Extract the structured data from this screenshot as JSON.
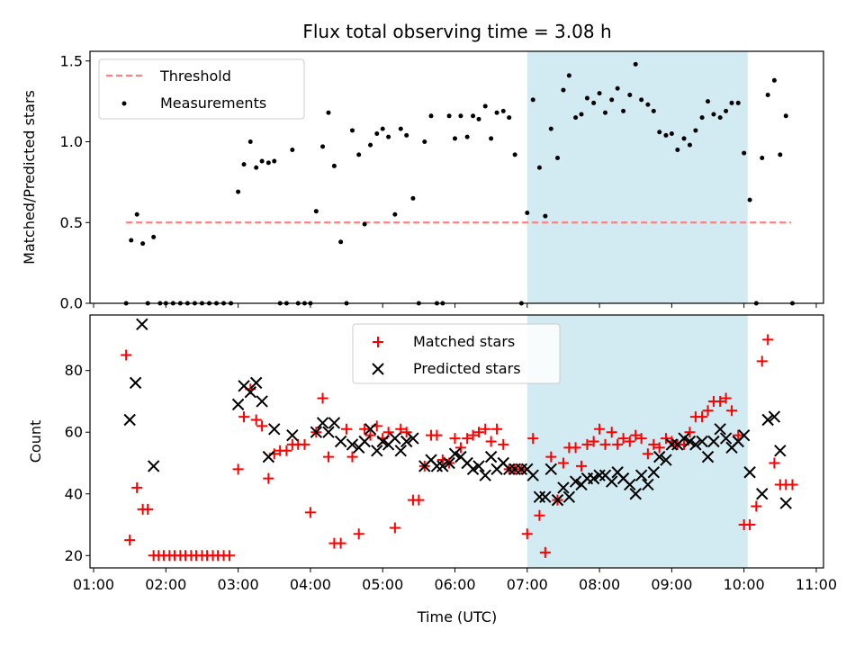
{
  "figure_title": "Flux total observing time = 3.08 h",
  "colors": {
    "threshold": "#ff7f7f",
    "measurement": "#000000",
    "matched": "#ff0000",
    "predicted": "#000000",
    "shade": "#add8e6"
  },
  "chart_data": [
    {
      "type": "scatter",
      "panel": "top",
      "ylabel": "Matched/Predicted stars",
      "xlim": [
        0.95,
        11.1
      ],
      "ylim": [
        0,
        1.56
      ],
      "yticks": [
        0,
        0.5,
        1,
        1.5
      ],
      "ytick_labels": [
        "0.0",
        "0.5",
        "1.0",
        "1.5"
      ],
      "grid": false,
      "legend_position": "upper-left",
      "shaded_region": [
        7.0,
        10.05
      ],
      "series": [
        {
          "name": "Threshold",
          "kind": "dashed-line",
          "x": [
            1.45,
            10.65
          ],
          "y": [
            0.5,
            0.5
          ]
        },
        {
          "name": "Measurements",
          "kind": "points",
          "x": [
            1.45,
            1.52,
            1.6,
            1.68,
            1.75,
            1.83,
            1.92,
            2.0,
            2.1,
            2.2,
            2.3,
            2.4,
            2.5,
            2.6,
            2.7,
            2.8,
            2.9,
            3.0,
            3.08,
            3.17,
            3.25,
            3.33,
            3.42,
            3.5,
            3.58,
            3.67,
            3.75,
            3.83,
            3.92,
            4.0,
            4.08,
            4.17,
            4.25,
            4.33,
            4.42,
            4.5,
            4.58,
            4.67,
            4.75,
            4.83,
            4.92,
            5.0,
            5.08,
            5.17,
            5.25,
            5.33,
            5.42,
            5.5,
            5.58,
            5.67,
            5.75,
            5.83,
            5.92,
            6.0,
            6.08,
            6.17,
            6.25,
            6.33,
            6.42,
            6.5,
            6.58,
            6.67,
            6.75,
            6.83,
            6.92,
            7.0,
            7.08,
            7.17,
            7.25,
            7.33,
            7.42,
            7.5,
            7.58,
            7.67,
            7.75,
            7.83,
            7.92,
            8.0,
            8.08,
            8.17,
            8.25,
            8.33,
            8.42,
            8.5,
            8.58,
            8.67,
            8.75,
            8.83,
            8.92,
            9.0,
            9.08,
            9.17,
            9.25,
            9.33,
            9.42,
            9.5,
            9.58,
            9.67,
            9.75,
            9.83,
            9.92,
            10.0,
            10.08,
            10.17,
            10.25,
            10.33,
            10.42,
            10.5,
            10.58,
            10.67
          ],
          "y": [
            0.0,
            0.39,
            0.55,
            0.37,
            0.0,
            0.41,
            0.0,
            0.0,
            0.0,
            0.0,
            0.0,
            0.0,
            0.0,
            0.0,
            0.0,
            0.0,
            0.0,
            0.69,
            0.86,
            1.0,
            0.84,
            0.88,
            0.87,
            0.88,
            0.0,
            0.0,
            0.95,
            0.0,
            0.0,
            0.0,
            0.57,
            0.97,
            1.18,
            0.85,
            0.38,
            0.0,
            1.07,
            0.92,
            0.49,
            0.98,
            1.05,
            1.08,
            1.03,
            0.55,
            1.08,
            1.04,
            0.65,
            0.0,
            1.0,
            1.16,
            0.0,
            0.0,
            1.16,
            1.02,
            1.16,
            1.03,
            1.16,
            1.14,
            1.22,
            1.02,
            1.18,
            1.19,
            1.15,
            0.92,
            0.0,
            0.56,
            1.26,
            0.84,
            0.54,
            1.08,
            0.9,
            1.32,
            1.41,
            1.15,
            1.17,
            1.27,
            1.24,
            1.3,
            1.18,
            1.26,
            1.33,
            1.19,
            1.29,
            1.48,
            1.26,
            1.23,
            1.19,
            1.06,
            1.04,
            1.05,
            0.95,
            1.02,
            0.98,
            1.07,
            1.15,
            1.25,
            1.17,
            1.15,
            1.19,
            1.24,
            1.24,
            0.93,
            0.64,
            0.0,
            0.9,
            1.29,
            1.38,
            0.92,
            1.16,
            0.0
          ]
        }
      ]
    },
    {
      "type": "scatter",
      "panel": "bottom",
      "xlabel": "Time (UTC)",
      "ylabel": "Count",
      "xlim": [
        0.95,
        11.1
      ],
      "ylim": [
        16,
        98
      ],
      "xticks": [
        1,
        2,
        3,
        4,
        5,
        6,
        7,
        8,
        9,
        10,
        11
      ],
      "xtick_labels": [
        "01:00",
        "02:00",
        "03:00",
        "04:00",
        "05:00",
        "06:00",
        "07:00",
        "08:00",
        "09:00",
        "10:00",
        "11:00"
      ],
      "yticks": [
        20,
        40,
        60,
        80
      ],
      "ytick_labels": [
        "20",
        "40",
        "60",
        "80"
      ],
      "grid": false,
      "legend_position": "upper-center",
      "shaded_region": [
        7.0,
        10.05
      ],
      "series": [
        {
          "name": "Matched stars",
          "marker": "plus",
          "x": [
            1.45,
            1.5,
            1.6,
            1.68,
            1.75,
            1.83,
            1.9,
            1.97,
            2.05,
            2.12,
            2.2,
            2.27,
            2.35,
            2.42,
            2.5,
            2.57,
            2.65,
            2.72,
            2.8,
            2.88,
            3.0,
            3.08,
            3.17,
            3.25,
            3.33,
            3.42,
            3.5,
            3.58,
            3.67,
            3.75,
            3.83,
            3.92,
            4.0,
            4.08,
            4.17,
            4.25,
            4.33,
            4.42,
            4.5,
            4.58,
            4.67,
            4.75,
            4.83,
            4.92,
            5.0,
            5.08,
            5.17,
            5.25,
            5.33,
            5.42,
            5.5,
            5.58,
            5.67,
            5.75,
            5.83,
            5.92,
            6.0,
            6.08,
            6.17,
            6.25,
            6.33,
            6.42,
            6.5,
            6.58,
            6.67,
            6.75,
            6.83,
            6.92,
            7.0,
            7.08,
            7.17,
            7.25,
            7.33,
            7.42,
            7.5,
            7.58,
            7.67,
            7.75,
            7.83,
            7.92,
            8.0,
            8.08,
            8.17,
            8.25,
            8.33,
            8.42,
            8.5,
            8.58,
            8.67,
            8.75,
            8.83,
            8.92,
            9.0,
            9.08,
            9.17,
            9.25,
            9.33,
            9.42,
            9.5,
            9.58,
            9.67,
            9.75,
            9.83,
            9.92,
            10.0,
            10.08,
            10.17,
            10.25,
            10.33,
            10.42,
            10.5,
            10.58,
            10.67
          ],
          "y": [
            85,
            25,
            42,
            35,
            35,
            20,
            20,
            20,
            20,
            20,
            20,
            20,
            20,
            20,
            20,
            20,
            20,
            20,
            20,
            20,
            48,
            65,
            74,
            64,
            62,
            45,
            53,
            54,
            54,
            56,
            56,
            56,
            34,
            60,
            71,
            52,
            24,
            24,
            61,
            52,
            27,
            61,
            59,
            62,
            58,
            60,
            29,
            61,
            60,
            38,
            38,
            49,
            59,
            59,
            51,
            50,
            58,
            55,
            58,
            59,
            60,
            61,
            57,
            61,
            56,
            48,
            48,
            48,
            27,
            58,
            33,
            21,
            52,
            38,
            50,
            55,
            55,
            49,
            56,
            57,
            61,
            56,
            60,
            56,
            58,
            57,
            59,
            58,
            53,
            56,
            55,
            58,
            57,
            56,
            56,
            60,
            65,
            65,
            67,
            70,
            70,
            71,
            67,
            59,
            30,
            30,
            36,
            83,
            90,
            50,
            43,
            43,
            43
          ]
        },
        {
          "name": "Predicted stars",
          "marker": "x",
          "x": [
            1.5,
            1.58,
            1.67,
            1.83,
            3.0,
            3.08,
            3.17,
            3.25,
            3.33,
            3.42,
            3.5,
            3.75,
            4.08,
            4.17,
            4.25,
            4.33,
            4.42,
            4.58,
            4.67,
            4.75,
            4.83,
            4.92,
            5.0,
            5.08,
            5.17,
            5.25,
            5.33,
            5.42,
            5.58,
            5.67,
            5.75,
            5.83,
            5.92,
            6.0,
            6.08,
            6.17,
            6.25,
            6.33,
            6.42,
            6.5,
            6.58,
            6.67,
            6.75,
            6.83,
            6.92,
            7.0,
            7.08,
            7.17,
            7.25,
            7.33,
            7.42,
            7.5,
            7.58,
            7.67,
            7.75,
            7.83,
            7.92,
            8.0,
            8.08,
            8.17,
            8.25,
            8.33,
            8.42,
            8.5,
            8.58,
            8.67,
            8.75,
            8.83,
            8.92,
            9.0,
            9.08,
            9.17,
            9.25,
            9.33,
            9.42,
            9.5,
            9.58,
            9.67,
            9.75,
            9.83,
            9.92,
            10.0,
            10.08,
            10.25,
            10.33,
            10.42,
            10.5,
            10.58
          ],
          "y": [
            64,
            76,
            95,
            49,
            69,
            75,
            73,
            76,
            70,
            52,
            61,
            59,
            60,
            63,
            60,
            63,
            57,
            56,
            55,
            57,
            61,
            54,
            57,
            56,
            58,
            54,
            57,
            58,
            49,
            51,
            49,
            49,
            50,
            53,
            52,
            50,
            48,
            49,
            46,
            52,
            48,
            50,
            48,
            48,
            48,
            48,
            46,
            39,
            39,
            48,
            38,
            42,
            39,
            44,
            43,
            45,
            45,
            46,
            46,
            44,
            47,
            45,
            43,
            40,
            46,
            43,
            47,
            52,
            51,
            56,
            56,
            58,
            57,
            56,
            57,
            52,
            57,
            61,
            58,
            55,
            57,
            59,
            47,
            40,
            64,
            65,
            54,
            37
          ]
        }
      ]
    }
  ]
}
